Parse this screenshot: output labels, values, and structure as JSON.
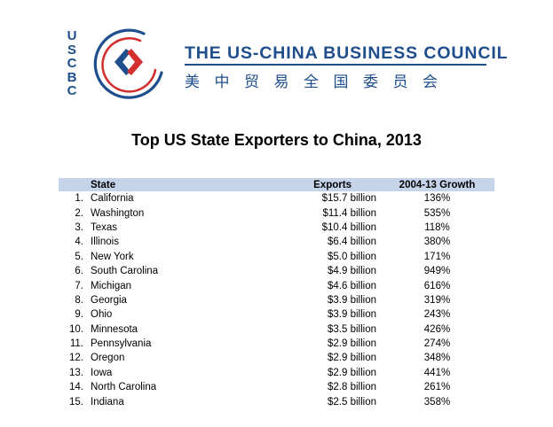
{
  "logo": {
    "letters": [
      "U",
      "S",
      "C",
      "B",
      "C"
    ],
    "name": "THE US-CHINA BUSINESS COUNCIL",
    "chinese_name": "美中贸易全国委员会",
    "colors": {
      "blue": "#1f4e8c",
      "red": "#d32f2f"
    }
  },
  "title": "Top US State Exporters to China, 2013",
  "table": {
    "headers": {
      "rank": "",
      "state": "State",
      "exports": "Exports",
      "growth": "2004-13 Growth"
    },
    "header_color": "#c6d4ea",
    "rows": [
      {
        "rank": "1.",
        "state": "California",
        "exports": "$15.7 billion",
        "growth": "136%"
      },
      {
        "rank": "2.",
        "state": "Washington",
        "exports": "$11.4 billion",
        "growth": "535%"
      },
      {
        "rank": "3.",
        "state": "Texas",
        "exports": "$10.4 billion",
        "growth": "118%"
      },
      {
        "rank": "4.",
        "state": "Illinois",
        "exports": "$6.4 billion",
        "growth": "380%"
      },
      {
        "rank": "5.",
        "state": "New York",
        "exports": "$5.0 billion",
        "growth": "171%"
      },
      {
        "rank": "6.",
        "state": "South Carolina",
        "exports": "$4.9 billion",
        "growth": "949%"
      },
      {
        "rank": "7.",
        "state": "Michigan",
        "exports": "$4.6 billion",
        "growth": "616%"
      },
      {
        "rank": "8.",
        "state": "Georgia",
        "exports": "$3.9 billion",
        "growth": "319%"
      },
      {
        "rank": "9.",
        "state": "Ohio",
        "exports": "$3.9 billion",
        "growth": "243%"
      },
      {
        "rank": "10.",
        "state": "Minnesota",
        "exports": "$3.5 billion",
        "growth": "426%"
      },
      {
        "rank": "11.",
        "state": "Pennsylvania",
        "exports": "$2.9 billion",
        "growth": "274%"
      },
      {
        "rank": "12.",
        "state": "Oregon",
        "exports": "$2.9 billion",
        "growth": "348%"
      },
      {
        "rank": "13.",
        "state": "Iowa",
        "exports": "$2.9 billion",
        "growth": "441%"
      },
      {
        "rank": "14.",
        "state": "North Carolina",
        "exports": "$2.8 billion",
        "growth": "261%"
      },
      {
        "rank": "15.",
        "state": "Indiana",
        "exports": "$2.5 billion",
        "growth": "358%"
      }
    ]
  }
}
